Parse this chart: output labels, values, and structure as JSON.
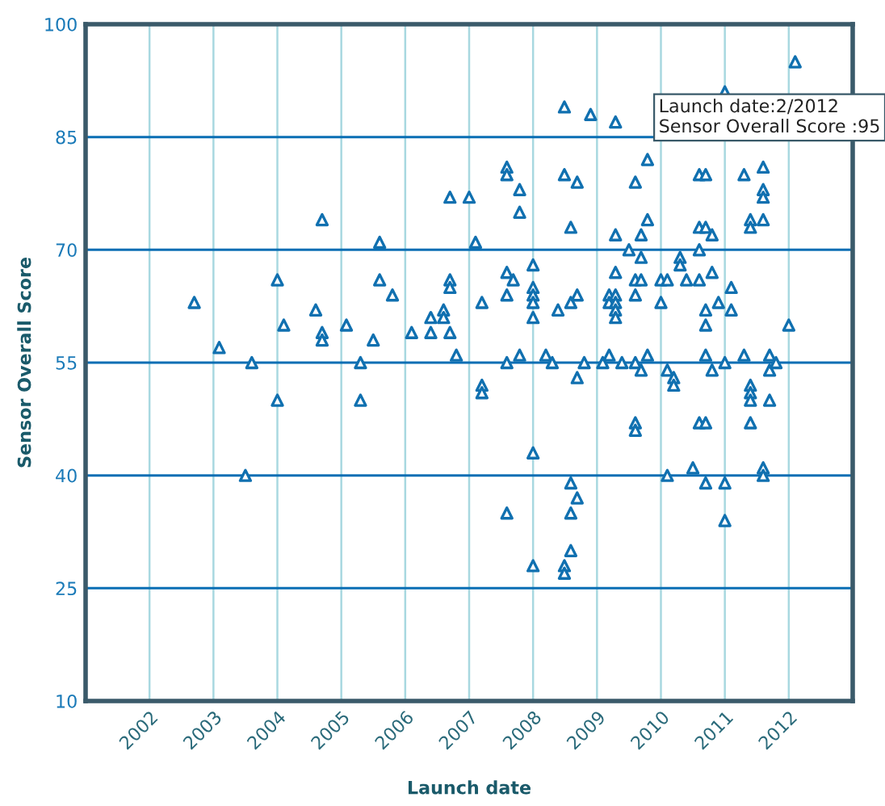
{
  "chart_data": {
    "type": "scatter",
    "xlabel": "Launch date",
    "ylabel": "Sensor Overall Score",
    "xlim": [
      2001,
      2013
    ],
    "xticks": [
      2002,
      2003,
      2004,
      2005,
      2006,
      2007,
      2008,
      2009,
      2010,
      2011,
      2012
    ],
    "ylim": [
      10,
      100
    ],
    "yticks": [
      10,
      25,
      40,
      55,
      70,
      85,
      100
    ],
    "grid": true,
    "marker": "triangle",
    "series": [
      {
        "color": "#1070b0",
        "x": [
          2002.7,
          2003.09,
          2003.6,
          2003.5,
          2004.0,
          2004.1,
          2004.0,
          2004.6,
          2004.7,
          2004.7,
          2004.7,
          2005.08,
          2005.3,
          2005.3,
          2005.5,
          2005.6,
          2005.6,
          2005.8,
          2006.1,
          2006.4,
          2006.4,
          2006.6,
          2006.6,
          2006.7,
          2006.7,
          2006.7,
          2006.7,
          2006.8,
          2007.0,
          2007.1,
          2007.2,
          2007.2,
          2007.2,
          2008.49,
          2008.9,
          2009.29,
          2011.0,
          2012.1,
          2007.59,
          2007.59,
          2007.79,
          2007.79,
          2008.49,
          2008.69,
          2008.59,
          2009.79,
          2009.6,
          2009.79,
          2009.29,
          2009.69,
          2009.5,
          2009.69,
          2007.59,
          2007.69,
          2007.59,
          2008.0,
          2008.0,
          2008.0,
          2008.0,
          2008.0,
          2008.39,
          2008.59,
          2008.69,
          2007.59,
          2007.79,
          2008.2,
          2008.3,
          2008.8,
          2008.69,
          2009.09,
          2009.19,
          2009.39,
          2009.6,
          2009.69,
          2009.79,
          2008.0,
          2007.59,
          2008.0,
          2008.59,
          2008.69,
          2008.59,
          2008.59,
          2008.49,
          2008.49,
          2009.19,
          2009.19,
          2009.29,
          2009.29,
          2009.29,
          2009.29,
          2009.29,
          2009.6,
          2009.69,
          2009.6,
          2009.6,
          2009.6,
          2010.0,
          2010.1,
          2010.0,
          2010.3,
          2010.3,
          2010.4,
          2010.6,
          2010.6,
          2010.8,
          2010.6,
          2010.7,
          2010.6,
          2010.7,
          2010.8,
          2011.1,
          2010.9,
          2010.7,
          2011.1,
          2010.7,
          2010.1,
          2010.2,
          2010.2,
          2010.7,
          2010.8,
          2011.0,
          2011.3,
          2010.6,
          2010.7,
          2010.1,
          2010.5,
          2010.7,
          2011.0,
          2011.0,
          2011.3,
          2011.6,
          2011.6,
          2011.6,
          2011.4,
          2011.4,
          2011.6,
          2011.4,
          2011.4,
          2011.4,
          2011.4,
          2011.7,
          2011.7,
          2011.8,
          2011.7,
          2011.6,
          2011.6,
          2012.0
        ],
        "values": [
          63,
          57,
          55,
          40,
          66,
          60,
          50,
          62,
          74,
          59,
          58,
          60,
          55,
          50,
          58,
          71,
          66,
          64,
          59,
          61,
          59,
          62,
          61,
          77,
          66,
          65,
          59,
          56,
          77,
          71,
          63,
          52,
          51,
          89,
          88,
          87,
          91,
          95,
          81,
          80,
          78,
          75,
          80,
          79,
          73,
          82,
          79,
          74,
          72,
          72,
          70,
          69,
          67,
          66,
          64,
          68,
          65,
          64,
          63,
          61,
          62,
          63,
          64,
          55,
          56,
          56,
          55,
          55,
          53,
          55,
          56,
          55,
          55,
          54,
          56,
          43,
          35,
          28,
          39,
          37,
          35,
          30,
          28,
          27,
          64,
          63,
          64,
          63,
          62,
          61,
          67,
          66,
          66,
          64,
          47,
          46,
          66,
          66,
          63,
          69,
          68,
          66,
          70,
          66,
          67,
          80,
          80,
          73,
          73,
          72,
          65,
          63,
          62,
          62,
          60,
          54,
          53,
          52,
          56,
          54,
          55,
          56,
          47,
          47,
          40,
          41,
          39,
          39,
          34,
          80,
          81,
          78,
          77,
          74,
          73,
          74,
          52,
          51,
          50,
          47,
          56,
          54,
          55,
          50,
          41,
          40,
          60
        ]
      }
    ],
    "annotations": [
      "Launch date:2/2012\nSensor Overall Score :95"
    ]
  }
}
